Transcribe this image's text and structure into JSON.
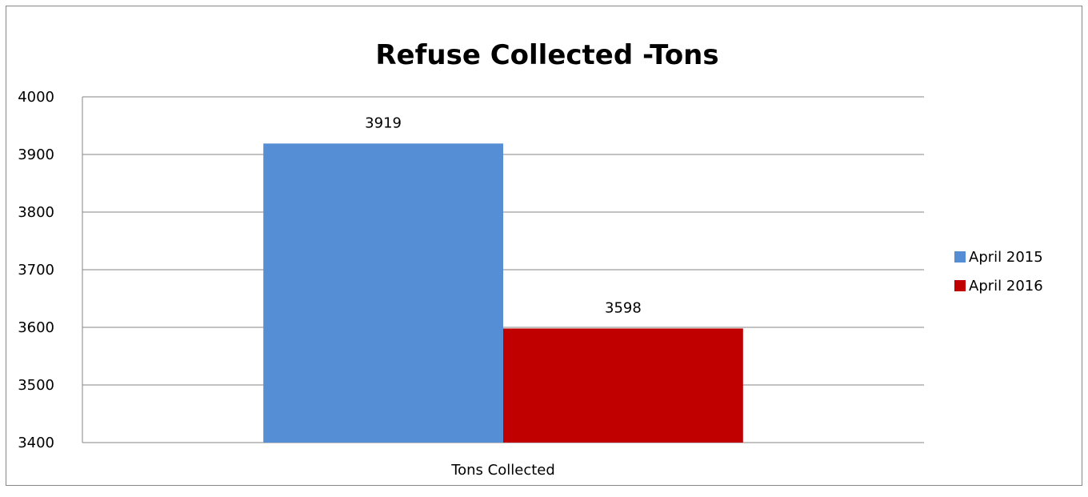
{
  "chart_data": {
    "type": "bar",
    "title": "Refuse Collected -Tons",
    "categories": [
      "Tons Collected"
    ],
    "series": [
      {
        "name": "April 2015",
        "values": [
          3919
        ],
        "color": "#558ED5"
      },
      {
        "name": "April 2016",
        "values": [
          3598
        ],
        "color": "#C00000"
      }
    ],
    "xlabel": "",
    "ylabel": "",
    "ylim": [
      3400,
      4000
    ],
    "yticks": [
      "3400",
      "3500",
      "3600",
      "3700",
      "3800",
      "3900",
      "4000"
    ],
    "grid": true,
    "legend_position": "right",
    "data_labels": [
      "3919",
      "3598"
    ]
  }
}
